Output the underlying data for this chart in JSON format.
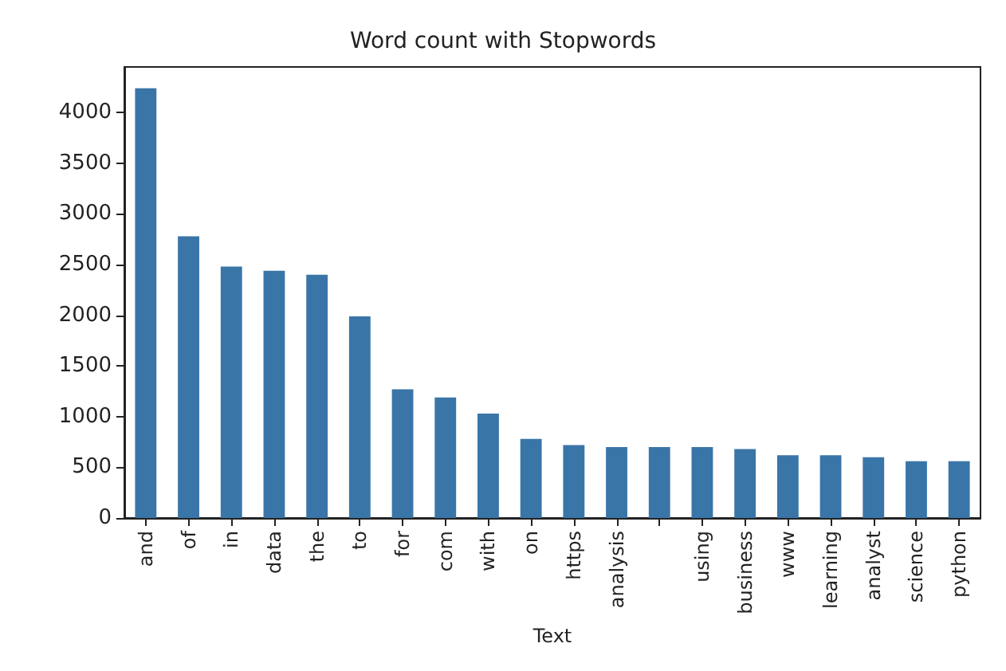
{
  "chart_data": {
    "type": "bar",
    "title": "Word count with Stopwords",
    "xlabel": "Text",
    "categories": [
      "and",
      "of",
      "in",
      "data",
      "the",
      "to",
      "for",
      "com",
      "with",
      "on",
      "https",
      "analysis",
      null,
      "using",
      "business",
      "www",
      "learning",
      "analyst",
      "science",
      "python"
    ],
    "values": [
      4240,
      2780,
      2480,
      2440,
      2400,
      1990,
      1270,
      1190,
      1030,
      780,
      720,
      700,
      700,
      700,
      680,
      620,
      620,
      600,
      560,
      560
    ],
    "color": "#3a75a8",
    "ylim": [
      0,
      4450
    ],
    "yticks": [
      0,
      500,
      1000,
      1500,
      2000,
      2500,
      3000,
      3500,
      4000
    ],
    "grid": false
  }
}
